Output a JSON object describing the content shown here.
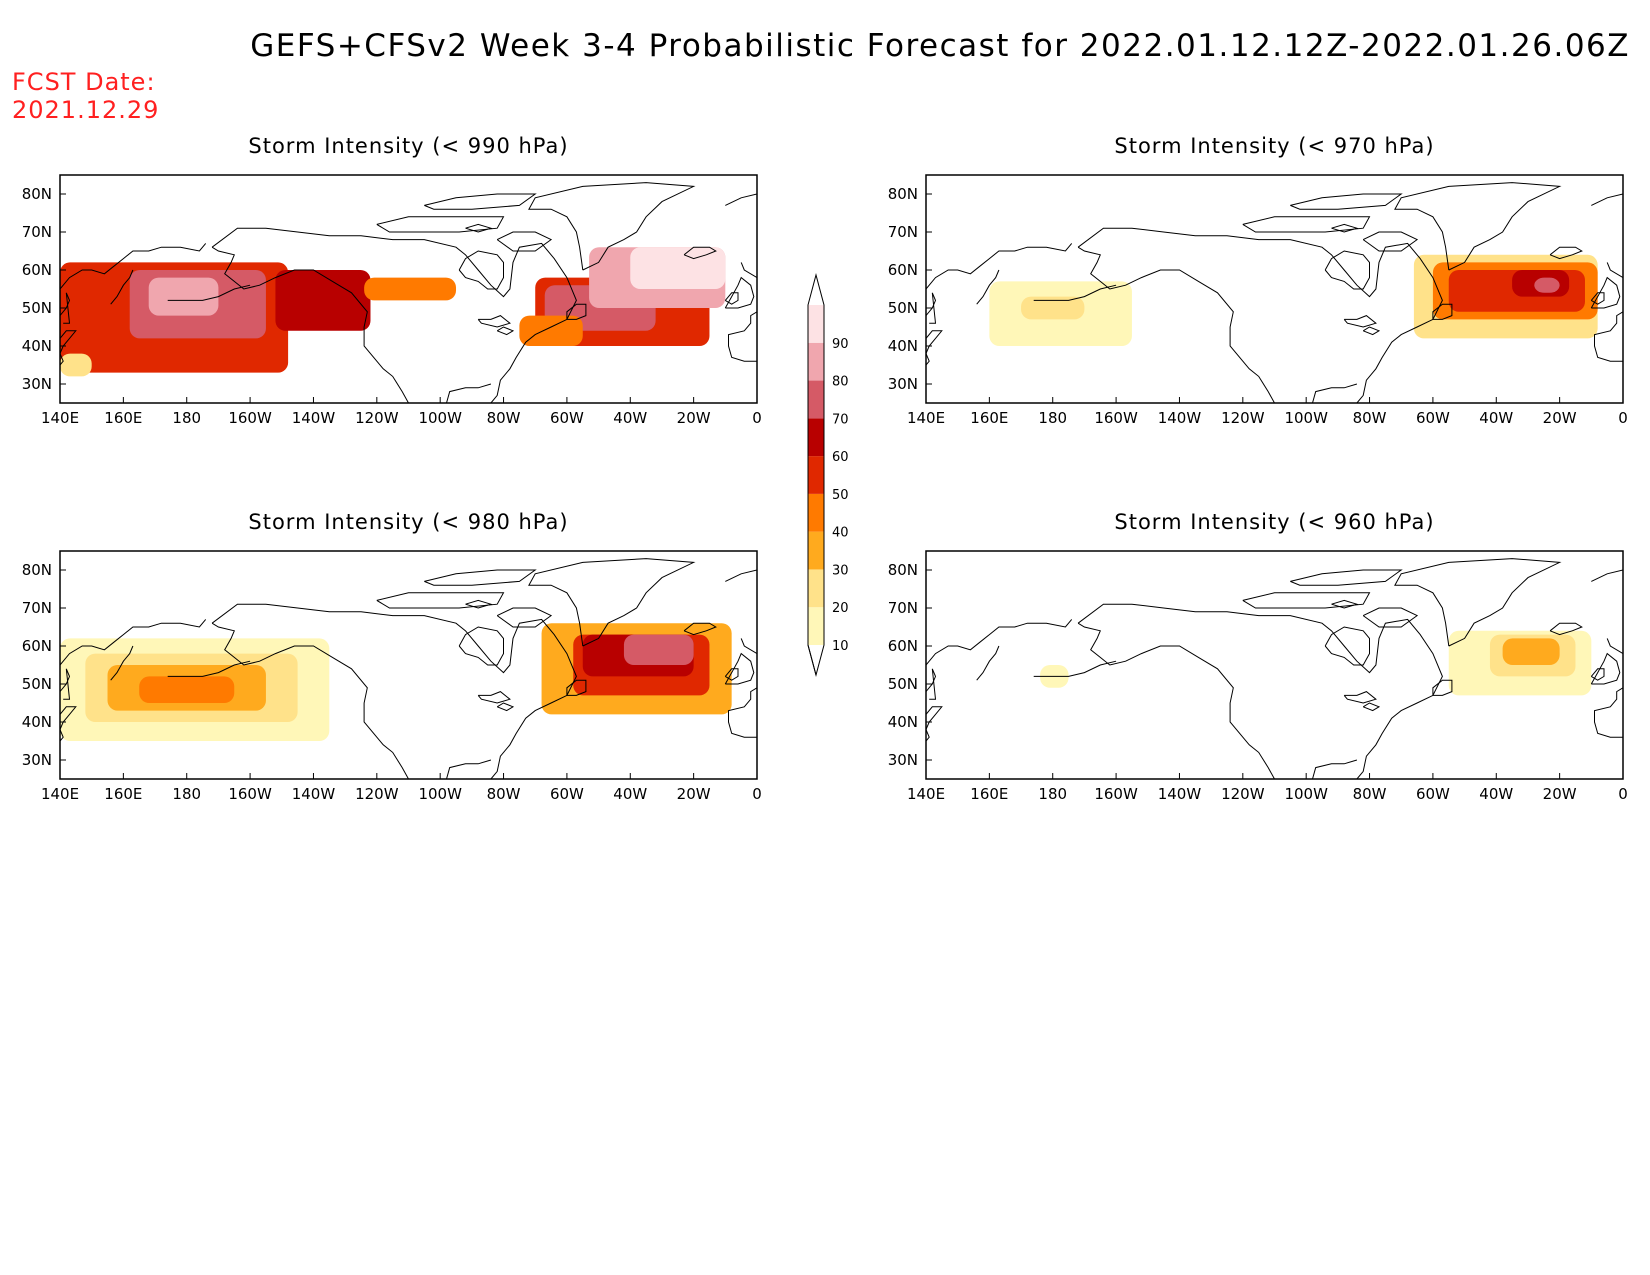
{
  "title": "GEFS+CFSv2 Week 3-4 Probabilistic Forecast for 2022.01.12.12Z-2022.01.26.06Z",
  "fcst_date_label": "FCST Date:",
  "fcst_date": "2021.12.29",
  "lon_labels": [
    "140E",
    "160E",
    "180",
    "160W",
    "140W",
    "120W",
    "100W",
    "80W",
    "60W",
    "40W",
    "20W",
    "0"
  ],
  "lat_labels": [
    "80N",
    "70N",
    "60N",
    "50N",
    "40N",
    "30N"
  ],
  "colorbar": {
    "levels": [
      10,
      20,
      30,
      40,
      50,
      60,
      70,
      80,
      90
    ],
    "colors": [
      "#fff7b8",
      "#ffe28a",
      "#ffaa1e",
      "#ff7a00",
      "#e02800",
      "#b80000",
      "#d55a66",
      "#f0a6ae",
      "#fde2e4"
    ]
  },
  "panels": [
    {
      "id": "p990",
      "title": "Storm Intensity (< 990 hPa)",
      "regions": [
        {
          "lon": [
            140,
            212
          ],
          "lat": [
            33,
            62
          ],
          "level": 50
        },
        {
          "lon": [
            162,
            205
          ],
          "lat": [
            42,
            60
          ],
          "level": 70
        },
        {
          "lon": [
            168,
            190
          ],
          "lat": [
            48,
            58
          ],
          "level": 80
        },
        {
          "lon": [
            208,
            238
          ],
          "lat": [
            44,
            60
          ],
          "level": 60
        },
        {
          "lon": [
            236,
            265
          ],
          "lat": [
            52,
            58
          ],
          "level": 40
        },
        {
          "lon": [
            140,
            150
          ],
          "lat": [
            32,
            38
          ],
          "level": 20
        },
        {
          "lon": [
            290,
            345
          ],
          "lat": [
            40,
            58
          ],
          "level": 50
        },
        {
          "lon": [
            293,
            328
          ],
          "lat": [
            44,
            56
          ],
          "level": 70
        },
        {
          "lon": [
            307,
            350
          ],
          "lat": [
            50,
            66
          ],
          "level": 80
        },
        {
          "lon": [
            320,
            350
          ],
          "lat": [
            55,
            66
          ],
          "level": 90
        },
        {
          "lon": [
            285,
            305
          ],
          "lat": [
            40,
            48
          ],
          "level": 40
        }
      ]
    },
    {
      "id": "p970",
      "title": "Storm Intensity (< 970 hPa)",
      "regions": [
        {
          "lon": [
            160,
            205
          ],
          "lat": [
            40,
            57
          ],
          "level": 10
        },
        {
          "lon": [
            170,
            190
          ],
          "lat": [
            47,
            53
          ],
          "level": 20
        },
        {
          "lon": [
            294,
            352
          ],
          "lat": [
            42,
            64
          ],
          "level": 20
        },
        {
          "lon": [
            300,
            352
          ],
          "lat": [
            47,
            62
          ],
          "level": 40
        },
        {
          "lon": [
            305,
            348
          ],
          "lat": [
            49,
            60
          ],
          "level": 50
        },
        {
          "lon": [
            325,
            343
          ],
          "lat": [
            53,
            60
          ],
          "level": 60
        },
        {
          "lon": [
            332,
            340
          ],
          "lat": [
            54,
            58
          ],
          "level": 70
        }
      ]
    },
    {
      "id": "p980",
      "title": "Storm Intensity (< 980 hPa)",
      "regions": [
        {
          "lon": [
            140,
            225
          ],
          "lat": [
            35,
            62
          ],
          "level": 10
        },
        {
          "lon": [
            148,
            215
          ],
          "lat": [
            40,
            58
          ],
          "level": 20
        },
        {
          "lon": [
            155,
            205
          ],
          "lat": [
            43,
            55
          ],
          "level": 30
        },
        {
          "lon": [
            165,
            195
          ],
          "lat": [
            45,
            52
          ],
          "level": 40
        },
        {
          "lon": [
            292,
            352
          ],
          "lat": [
            42,
            66
          ],
          "level": 30
        },
        {
          "lon": [
            302,
            345
          ],
          "lat": [
            47,
            63
          ],
          "level": 50
        },
        {
          "lon": [
            305,
            340
          ],
          "lat": [
            52,
            63
          ],
          "level": 60
        },
        {
          "lon": [
            318,
            340
          ],
          "lat": [
            55,
            63
          ],
          "level": 70
        }
      ]
    },
    {
      "id": "p960",
      "title": "Storm Intensity (< 960 hPa)",
      "regions": [
        {
          "lon": [
            176,
            185
          ],
          "lat": [
            49,
            55
          ],
          "level": 10
        },
        {
          "lon": [
            305,
            350
          ],
          "lat": [
            47,
            64
          ],
          "level": 10
        },
        {
          "lon": [
            318,
            345
          ],
          "lat": [
            52,
            63
          ],
          "level": 20
        },
        {
          "lon": [
            322,
            340
          ],
          "lat": [
            55,
            62
          ],
          "level": 30
        }
      ]
    }
  ]
}
